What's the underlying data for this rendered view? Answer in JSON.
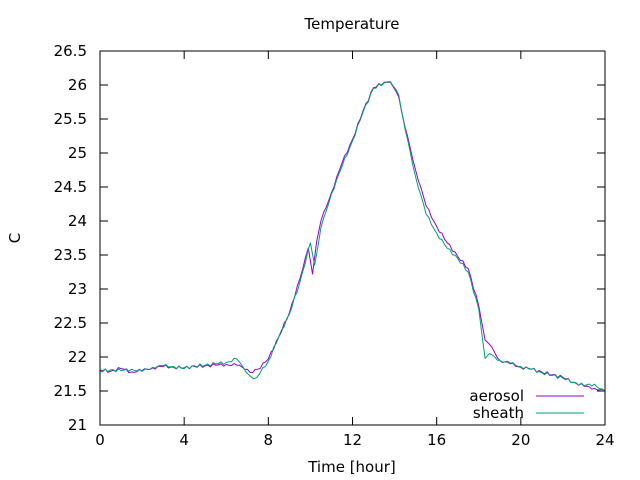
{
  "chart_data": {
    "type": "line",
    "title": "Temperature",
    "xlabel": "Time [hour]",
    "ylabel": "C",
    "xlim": [
      0,
      24
    ],
    "ylim": [
      21,
      26.5
    ],
    "xticks": [
      0,
      4,
      8,
      12,
      16,
      20,
      24
    ],
    "yticks": [
      21,
      21.5,
      22,
      22.5,
      23,
      23.5,
      24,
      24.5,
      25,
      25.5,
      26,
      26.5
    ],
    "xtick_labels": [
      "0",
      "4",
      "8",
      "12",
      "16",
      "20",
      "24"
    ],
    "ytick_labels": [
      "21",
      "21.5",
      "22",
      "22.5",
      "23",
      "23.5",
      "24",
      "24.5",
      "25",
      "25.5",
      "26",
      "26.5"
    ],
    "grid": false,
    "legend": "bottom-right",
    "series": [
      {
        "name": "aerosol",
        "color": "#9400d3",
        "x": [
          0,
          0.5,
          1,
          1.5,
          2,
          2.5,
          3,
          3.5,
          4,
          4.5,
          5,
          5.5,
          6,
          6.5,
          7,
          7.25,
          7.5,
          8,
          8.5,
          9,
          9.5,
          9.9,
          10.1,
          10.3,
          10.5,
          11,
          11.5,
          12,
          12.5,
          13,
          13.5,
          13.8,
          14.2,
          14.5,
          15,
          15.5,
          16,
          16.5,
          17,
          17.5,
          18,
          18.3,
          18.5,
          19,
          19.5,
          20,
          20.5,
          21,
          21.5,
          22,
          22.5,
          23,
          23.5,
          24
        ],
        "y": [
          21.81,
          21.79,
          21.83,
          21.78,
          21.8,
          21.84,
          21.86,
          21.85,
          21.84,
          21.86,
          21.87,
          21.88,
          21.89,
          21.88,
          21.82,
          21.77,
          21.82,
          21.97,
          22.3,
          22.65,
          23.15,
          23.6,
          23.22,
          23.7,
          24.0,
          24.42,
          24.85,
          25.2,
          25.62,
          25.96,
          26.04,
          26.04,
          25.82,
          25.38,
          24.75,
          24.22,
          23.92,
          23.68,
          23.48,
          23.3,
          22.75,
          22.25,
          22.19,
          21.95,
          21.9,
          21.85,
          21.82,
          21.78,
          21.74,
          21.7,
          21.63,
          21.57,
          21.54,
          21.5
        ]
      },
      {
        "name": "sheath",
        "color": "#009e73",
        "x": [
          0,
          0.5,
          1,
          1.5,
          2,
          2.5,
          3,
          3.5,
          4,
          4.5,
          5,
          5.5,
          6,
          6.5,
          6.8,
          7.1,
          7.3,
          7.6,
          8,
          8.5,
          9,
          9.5,
          10.0,
          10.2,
          10.5,
          11,
          11.5,
          12,
          12.5,
          13,
          13.5,
          13.8,
          14.2,
          14.5,
          15,
          15.5,
          16,
          16.5,
          17,
          17.5,
          18,
          18.3,
          18.5,
          19,
          19.5,
          20,
          20.5,
          21,
          21.5,
          22,
          22.5,
          23,
          23.5,
          24
        ],
        "y": [
          21.79,
          21.81,
          21.8,
          21.82,
          21.79,
          21.85,
          21.87,
          21.86,
          21.83,
          21.87,
          21.88,
          21.9,
          21.92,
          21.97,
          21.85,
          21.73,
          21.68,
          21.76,
          21.94,
          22.3,
          22.63,
          23.1,
          23.68,
          23.35,
          23.9,
          24.4,
          24.8,
          25.18,
          25.6,
          25.95,
          26.03,
          26.05,
          25.85,
          25.35,
          24.65,
          24.1,
          23.82,
          23.6,
          23.45,
          23.25,
          22.7,
          21.98,
          22.05,
          21.95,
          21.91,
          21.86,
          21.82,
          21.77,
          21.73,
          21.69,
          21.63,
          21.58,
          21.6,
          21.48
        ]
      }
    ]
  }
}
